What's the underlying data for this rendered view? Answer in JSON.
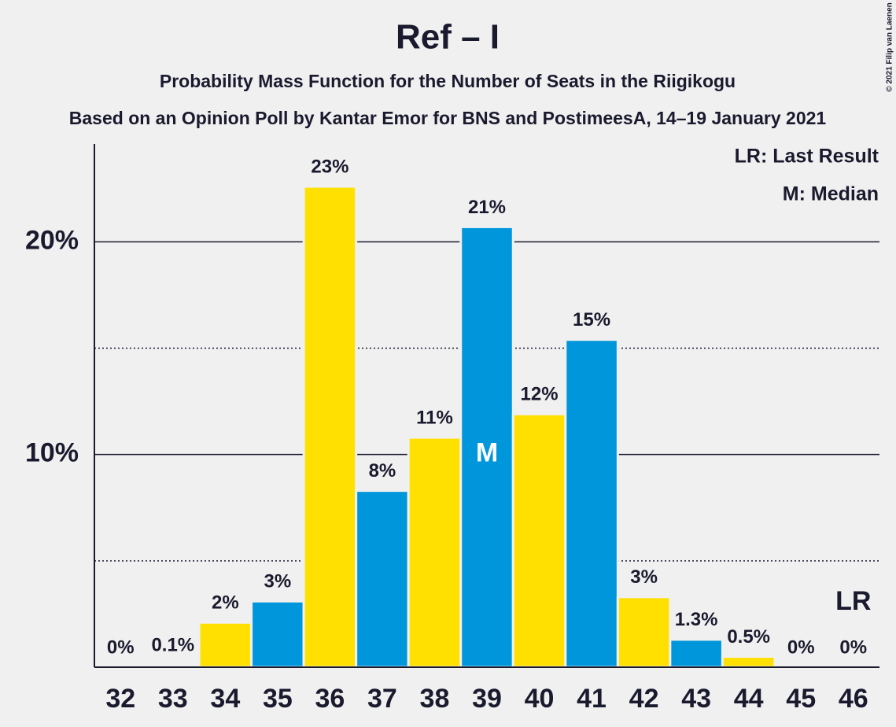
{
  "chart_data": {
    "type": "bar",
    "title": "Ref – I",
    "subtitle": "Probability Mass Function for the Number of Seats in the Riigikogu",
    "subtitle2": "Based on an Opinion Poll by Kantar Emor for BNS and PostimeesA, 14–19 January 2021",
    "credit": "© 2021 Filip van Laenen",
    "legend": [
      "LR: Last Result",
      "M: Median"
    ],
    "categories": [
      "32",
      "33",
      "34",
      "35",
      "36",
      "37",
      "38",
      "39",
      "40",
      "41",
      "42",
      "43",
      "44",
      "45",
      "46"
    ],
    "values": [
      0,
      0.1,
      2.1,
      3.1,
      22.6,
      8.3,
      10.8,
      20.7,
      11.9,
      15.4,
      3.3,
      1.3,
      0.5,
      0,
      0
    ],
    "value_labels": [
      "0%",
      "0.1%",
      "2%",
      "3%",
      "23%",
      "8%",
      "11%",
      "21%",
      "12%",
      "15%",
      "3%",
      "1.3%",
      "0.5%",
      "0%",
      "0%"
    ],
    "colors": [
      "#FFE000",
      "#0096DB",
      "#FFE000",
      "#0096DB",
      "#FFE000",
      "#0096DB",
      "#FFE000",
      "#0096DB",
      "#FFE000",
      "#0096DB",
      "#FFE000",
      "#0096DB",
      "#FFE000",
      "#0096DB",
      "#FFE000"
    ],
    "median": {
      "category": "39",
      "label": "M"
    },
    "last_result": {
      "category": "46",
      "label": "LR"
    },
    "ylim": [
      0,
      24.6
    ],
    "yticks": [
      {
        "value": 10,
        "label": "10%"
      },
      {
        "value": 20,
        "label": "20%"
      }
    ],
    "minor_grid": [
      5,
      15
    ],
    "grid": true
  }
}
